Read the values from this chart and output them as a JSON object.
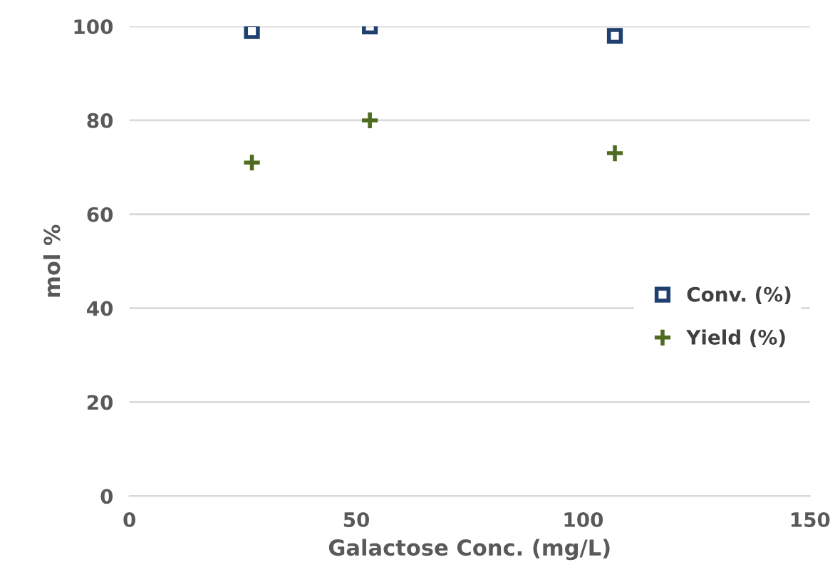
{
  "chart_data": {
    "type": "scatter",
    "xlabel": "Galactose Conc. (mg/L)",
    "ylabel": "mol %",
    "xlim": [
      0,
      150
    ],
    "xticks": [
      0,
      50,
      100,
      150
    ],
    "ylim": [
      0,
      100
    ],
    "yticks": [
      0,
      20,
      40,
      60,
      80,
      100
    ],
    "grid": "y",
    "legend": "right",
    "series": [
      {
        "name": "Conv. (%)",
        "color": "#1f3f6e",
        "marker": "square",
        "x": [
          27,
          53,
          107
        ],
        "values": [
          99,
          100,
          98
        ]
      },
      {
        "name": "Yield (%)",
        "color": "#4f6b22",
        "marker": "cross",
        "x": [
          27,
          53,
          107
        ],
        "values": [
          71,
          80,
          73
        ]
      }
    ]
  }
}
